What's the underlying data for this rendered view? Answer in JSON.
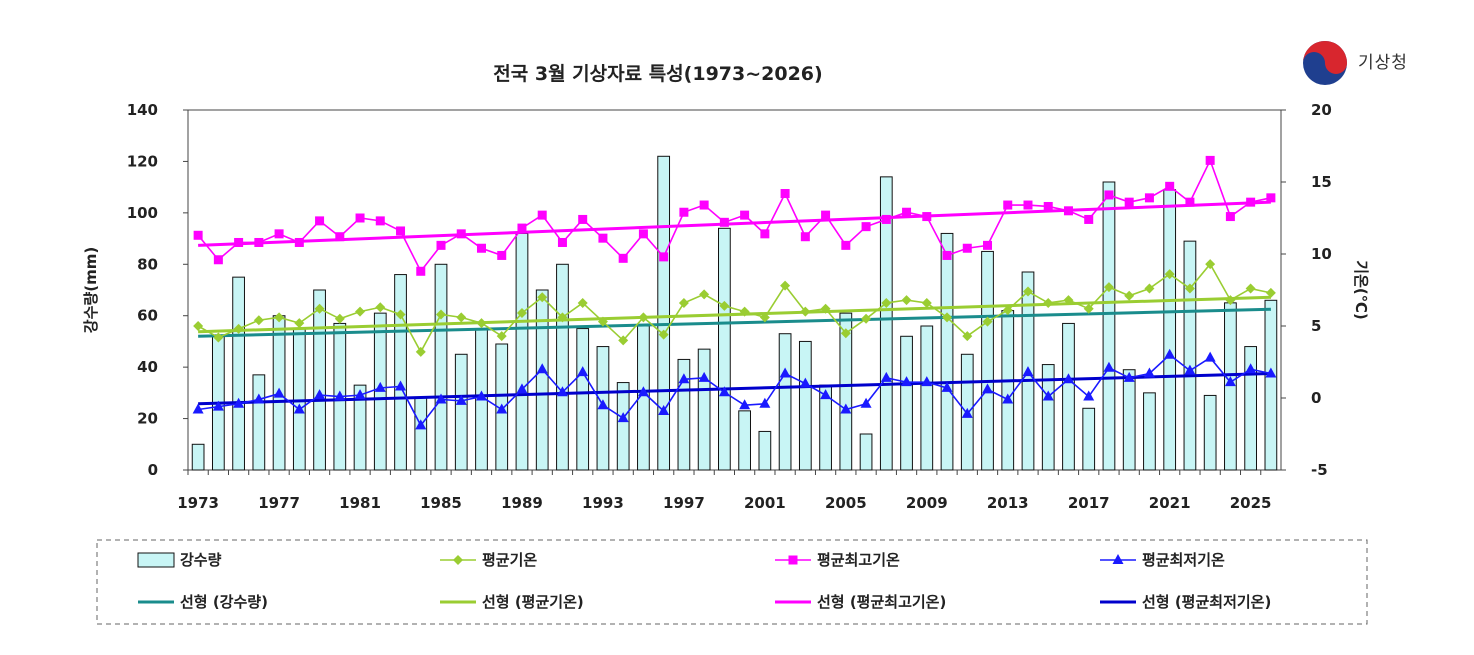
{
  "logo": {
    "text": "기상청"
  },
  "chart_data": {
    "type": "bar+line",
    "title": "전국  3월 기상자료 특성(1973~2026)",
    "y1label": "강수량(mm)",
    "y2label": "기온(℃)",
    "y1lim": [
      0,
      140
    ],
    "y2lim": [
      -5,
      20
    ],
    "y1ticks": [
      "0",
      "20",
      "40",
      "60",
      "80",
      "100",
      "120",
      "140"
    ],
    "y2ticks": [
      "-5",
      "0",
      "5",
      "10",
      "15",
      "20"
    ],
    "xticks": [
      "1973",
      "1977",
      "1981",
      "1985",
      "1989",
      "1993",
      "1997",
      "2001",
      "2005",
      "2009",
      "2013",
      "2017",
      "2021",
      "2025"
    ],
    "years": [
      1973,
      1974,
      1975,
      1976,
      1977,
      1978,
      1979,
      1980,
      1981,
      1982,
      1983,
      1984,
      1985,
      1986,
      1987,
      1988,
      1989,
      1990,
      1991,
      1992,
      1993,
      1994,
      1995,
      1996,
      1997,
      1998,
      1999,
      2000,
      2001,
      2002,
      2003,
      2004,
      2005,
      2006,
      2007,
      2008,
      2009,
      2010,
      2011,
      2012,
      2013,
      2014,
      2015,
      2016,
      2017,
      2018,
      2019,
      2020,
      2021,
      2022,
      2023,
      2024,
      2025,
      2026
    ],
    "grid": false,
    "legend_position": "bottom",
    "series": [
      {
        "name": "강수량",
        "kind": "bar",
        "axis": "left",
        "color": "#c8f5f5",
        "values": [
          10,
          52,
          75,
          37,
          60,
          55,
          70,
          57,
          33,
          61,
          76,
          28,
          80,
          45,
          55,
          49,
          92,
          70,
          80,
          55,
          48,
          34,
          56,
          122,
          43,
          47,
          94,
          23,
          15,
          53,
          50,
          33,
          61,
          14,
          114,
          52,
          56,
          92,
          45,
          85,
          62,
          77,
          41,
          57,
          24,
          112,
          39,
          30,
          109,
          89,
          29,
          65,
          48,
          66
        ]
      },
      {
        "name": "평균기온",
        "kind": "line",
        "axis": "right",
        "color": "#9acd32",
        "marker": "diamond",
        "values": [
          5.0,
          4.2,
          4.8,
          5.4,
          5.6,
          5.2,
          6.2,
          5.5,
          6.0,
          6.3,
          5.8,
          3.2,
          5.8,
          5.6,
          5.2,
          4.3,
          5.9,
          7.0,
          5.6,
          6.6,
          5.3,
          4.0,
          5.6,
          4.4,
          6.6,
          7.2,
          6.4,
          6.0,
          5.6,
          7.8,
          6.0,
          6.2,
          4.5,
          5.5,
          6.6,
          6.8,
          6.6,
          5.6,
          4.3,
          5.3,
          6.1,
          7.4,
          6.6,
          6.8,
          6.2,
          7.7,
          7.1,
          7.6,
          8.6,
          7.6,
          9.3,
          6.8,
          7.6,
          7.3
        ]
      },
      {
        "name": "평균최고기온",
        "kind": "line",
        "axis": "right",
        "color": "#ff00ff",
        "marker": "square",
        "values": [
          11.3,
          9.6,
          10.8,
          10.8,
          11.4,
          10.8,
          12.3,
          11.2,
          12.5,
          12.3,
          11.6,
          8.8,
          10.6,
          11.4,
          10.4,
          9.9,
          11.8,
          12.7,
          10.8,
          12.4,
          11.1,
          9.7,
          11.4,
          9.8,
          12.9,
          13.4,
          12.2,
          12.7,
          11.4,
          14.2,
          11.2,
          12.7,
          10.6,
          11.9,
          12.4,
          12.9,
          12.6,
          9.9,
          10.4,
          10.6,
          13.4,
          13.4,
          13.3,
          13.0,
          12.4,
          14.1,
          13.6,
          13.9,
          14.7,
          13.6,
          16.5,
          12.6,
          13.6,
          13.9
        ]
      },
      {
        "name": "평균최저기온",
        "kind": "line",
        "axis": "right",
        "color": "#1a1aff",
        "marker": "triangle",
        "values": [
          -0.8,
          -0.6,
          -0.4,
          -0.1,
          0.3,
          -0.8,
          0.2,
          0.1,
          0.2,
          0.7,
          0.8,
          -1.9,
          -0.1,
          -0.2,
          0.1,
          -0.8,
          0.6,
          2.0,
          0.4,
          1.8,
          -0.5,
          -1.4,
          0.4,
          -0.9,
          1.3,
          1.4,
          0.4,
          -0.5,
          -0.4,
          1.7,
          1.0,
          0.2,
          -0.8,
          -0.4,
          1.4,
          1.1,
          1.1,
          0.7,
          -1.1,
          0.6,
          -0.1,
          1.8,
          0.1,
          1.3,
          0.1,
          2.1,
          1.4,
          1.7,
          3.0,
          1.9,
          2.8,
          1.1,
          2.0,
          1.7
        ]
      },
      {
        "name": "선형 (강수량)",
        "kind": "trend",
        "axis": "left",
        "color": "#1a8c8c",
        "values": [
          52,
          62.5
        ]
      },
      {
        "name": "선형 (평균기온)",
        "kind": "trend",
        "axis": "right",
        "color": "#9acd32",
        "values": [
          4.6,
          7.0
        ]
      },
      {
        "name": "선형 (평균최고기온)",
        "kind": "trend",
        "axis": "right",
        "color": "#ff00ff",
        "values": [
          10.6,
          13.6
        ]
      },
      {
        "name": "선형 (평균최저기온)",
        "kind": "trend",
        "axis": "right",
        "color": "#0000cc",
        "values": [
          -0.4,
          1.7
        ]
      }
    ]
  }
}
